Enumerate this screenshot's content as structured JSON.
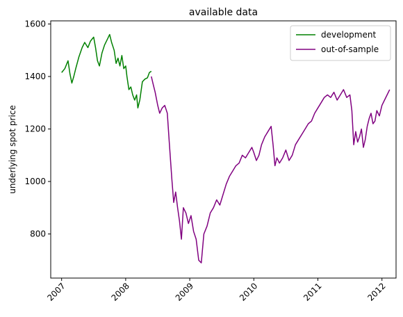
{
  "chart_data": {
    "type": "line",
    "title": "available data",
    "xlabel": "",
    "ylabel": "underlying spot price",
    "xlim": [
      2006.83,
      2012.22
    ],
    "ylim": [
      632,
      1612
    ],
    "xticks": [
      2007,
      2008,
      2009,
      2010,
      2011,
      2012
    ],
    "xtick_labels": [
      "2007",
      "2008",
      "2009",
      "2010",
      "2011",
      "2012"
    ],
    "yticks": [
      800,
      1000,
      1200,
      1400,
      1600
    ],
    "ytick_labels": [
      "800",
      "1000",
      "1200",
      "1400",
      "1600"
    ],
    "xtick_rotation": 45,
    "grid": false,
    "legend_position": "upper right",
    "series": [
      {
        "name": "development",
        "color": "#008000",
        "x": [
          2007.0,
          2007.05,
          2007.1,
          2007.13,
          2007.16,
          2007.19,
          2007.22,
          2007.27,
          2007.32,
          2007.36,
          2007.41,
          2007.45,
          2007.5,
          2007.53,
          2007.56,
          2007.59,
          2007.63,
          2007.67,
          2007.72,
          2007.75,
          2007.78,
          2007.82,
          2007.85,
          2007.88,
          2007.91,
          2007.94,
          2007.97,
          2008.0,
          2008.02,
          2008.05,
          2008.08,
          2008.11,
          2008.14,
          2008.17,
          2008.19,
          2008.22,
          2008.26,
          2008.3,
          2008.34,
          2008.37,
          2008.4
        ],
        "y": [
          1415,
          1430,
          1460,
          1410,
          1375,
          1400,
          1430,
          1475,
          1510,
          1530,
          1510,
          1535,
          1550,
          1510,
          1460,
          1440,
          1490,
          1520,
          1545,
          1560,
          1530,
          1500,
          1450,
          1470,
          1440,
          1480,
          1430,
          1440,
          1400,
          1350,
          1360,
          1330,
          1310,
          1330,
          1280,
          1310,
          1380,
          1390,
          1395,
          1415,
          1420
        ]
      },
      {
        "name": "out-of-sample",
        "color": "#800080",
        "x": [
          2008.4,
          2008.43,
          2008.46,
          2008.5,
          2008.53,
          2008.57,
          2008.61,
          2008.65,
          2008.68,
          2008.72,
          2008.75,
          2008.78,
          2008.81,
          2008.84,
          2008.87,
          2008.9,
          2008.94,
          2008.98,
          2009.02,
          2009.06,
          2009.1,
          2009.14,
          2009.18,
          2009.22,
          2009.27,
          2009.32,
          2009.37,
          2009.42,
          2009.47,
          2009.52,
          2009.57,
          2009.62,
          2009.67,
          2009.72,
          2009.77,
          2009.82,
          2009.87,
          2009.92,
          2009.97,
          2010.0,
          2010.04,
          2010.08,
          2010.12,
          2010.17,
          2010.22,
          2010.27,
          2010.3,
          2010.33,
          2010.36,
          2010.4,
          2010.45,
          2010.5,
          2010.55,
          2010.6,
          2010.65,
          2010.7,
          2010.75,
          2010.8,
          2010.85,
          2010.9,
          2010.95,
          2011.0,
          2011.05,
          2011.1,
          2011.15,
          2011.2,
          2011.25,
          2011.3,
          2011.35,
          2011.4,
          2011.45,
          2011.5,
          2011.53,
          2011.56,
          2011.59,
          2011.62,
          2011.65,
          2011.68,
          2011.71,
          2011.74,
          2011.77,
          2011.8,
          2011.83,
          2011.86,
          2011.89,
          2011.92,
          2011.96,
          2012.0,
          2012.04,
          2012.08,
          2012.12
        ],
        "y": [
          1400,
          1370,
          1340,
          1290,
          1260,
          1280,
          1290,
          1260,
          1150,
          1010,
          920,
          960,
          900,
          850,
          780,
          900,
          880,
          840,
          870,
          810,
          780,
          700,
          690,
          800,
          830,
          880,
          900,
          930,
          910,
          950,
          990,
          1020,
          1040,
          1060,
          1070,
          1100,
          1090,
          1110,
          1130,
          1110,
          1080,
          1100,
          1140,
          1170,
          1190,
          1210,
          1140,
          1060,
          1090,
          1070,
          1090,
          1120,
          1080,
          1100,
          1140,
          1160,
          1180,
          1200,
          1220,
          1230,
          1260,
          1280,
          1300,
          1320,
          1330,
          1320,
          1340,
          1310,
          1330,
          1350,
          1320,
          1330,
          1270,
          1140,
          1190,
          1150,
          1170,
          1200,
          1130,
          1160,
          1210,
          1240,
          1260,
          1220,
          1230,
          1270,
          1250,
          1290,
          1310,
          1330,
          1350
        ]
      }
    ]
  }
}
